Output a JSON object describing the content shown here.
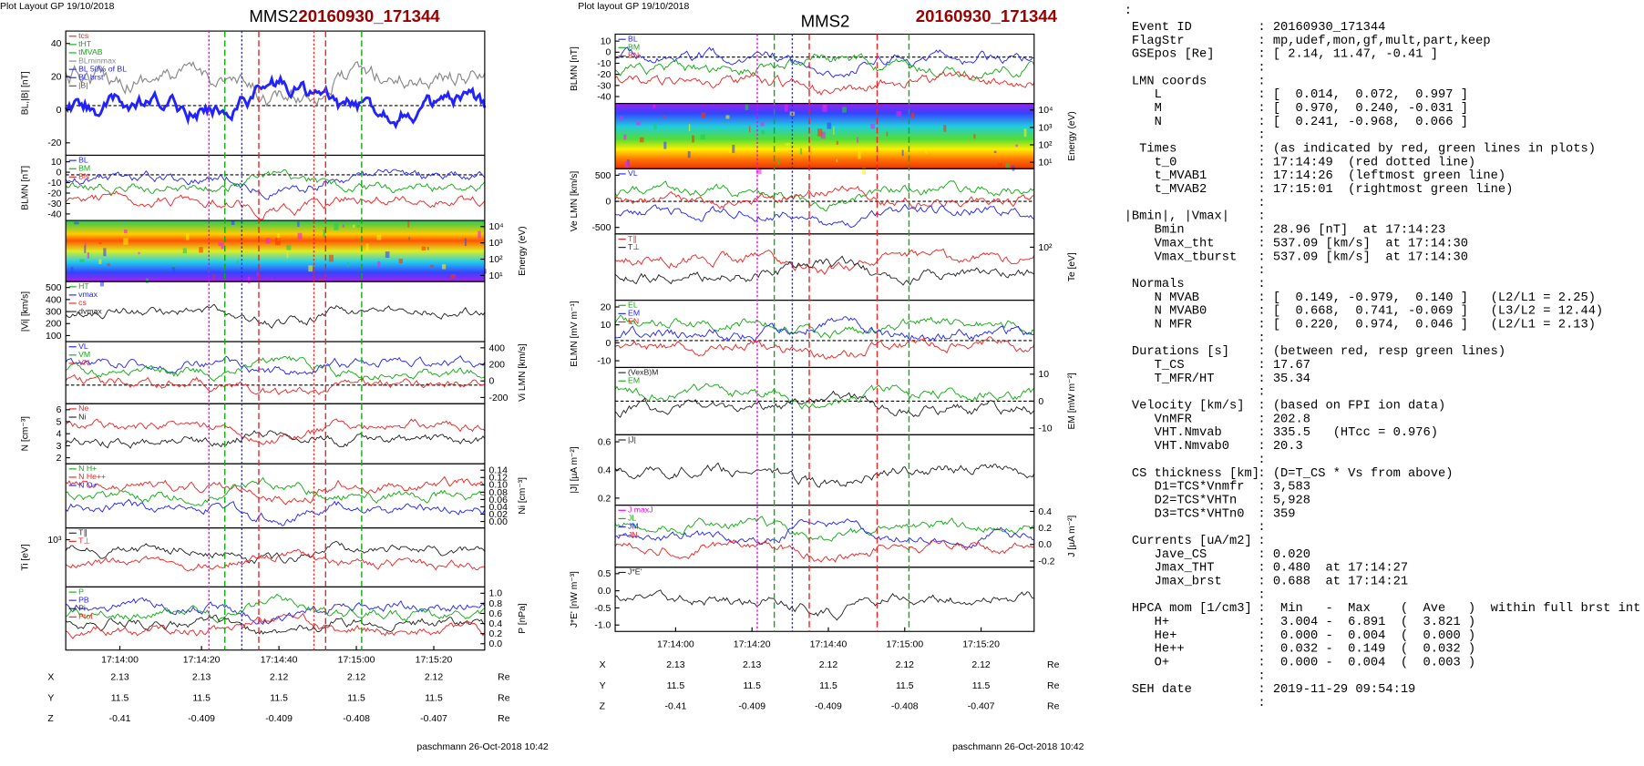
{
  "left_plot": {
    "header": "Plot Layout GP 19/10/2018",
    "mission": "MMS2",
    "event": "20160930_171344",
    "panels": [
      {
        "ylabel": "BL,|B| [nT]",
        "ticks": [
          "40",
          "20",
          "0",
          "-20"
        ],
        "legend": [
          "tcs",
          "tHT",
          "tMVAB",
          "BLminmax",
          "BL 50% of BL",
          "BL brst",
          "|B|"
        ]
      },
      {
        "ylabel": "BLMN [nT]",
        "ticks": [
          "10",
          "0",
          "-10",
          "-20",
          "-30",
          "-40"
        ],
        "legend": [
          "BL",
          "BM",
          "BN"
        ]
      },
      {
        "ylabel": "Energy (eV)",
        "ticks": [
          "10⁴",
          "10³",
          "10²",
          "10¹"
        ]
      },
      {
        "ylabel": "|Vi| [km/s]",
        "ticks": [
          "500",
          "400",
          "300",
          "200",
          "100"
        ],
        "legend": [
          "HT",
          "vmax",
          "cs",
          "dvmax"
        ]
      },
      {
        "ylabel": "Vi LMN [km/s]",
        "ticks": [
          "400",
          "200",
          "0",
          "-200"
        ],
        "legend": [
          "VL",
          "VM",
          "VN"
        ]
      },
      {
        "ylabel": "N [cm⁻³]",
        "ticks": [
          "6",
          "5",
          "4",
          "3",
          "2"
        ],
        "legend": [
          "Ne",
          "Ni"
        ]
      },
      {
        "ylabel": "Ni [cm⁻³]",
        "ticks": [
          "0.14",
          "0.12",
          "0.10",
          "0.08",
          "0.06",
          "0.04",
          "0.02",
          "0.00"
        ],
        "legend": [
          "N H+",
          "N He++",
          "N O+"
        ]
      },
      {
        "ylabel": "Ti [eV]",
        "ticks": [
          "10³"
        ],
        "legend": [
          "T∥",
          "T⊥"
        ]
      },
      {
        "ylabel": "P [nPa]",
        "ticks": [
          "1.0",
          "0.8",
          "0.6",
          "0.4",
          "0.2",
          "0.0"
        ],
        "legend": [
          "P",
          "PB",
          "Pi",
          "Ptot"
        ]
      }
    ],
    "xticks": [
      "17:14:00",
      "17:14:20",
      "17:14:40",
      "17:15:00",
      "17:15:20"
    ],
    "positions": [
      {
        "label": "X",
        "values": [
          "2.13",
          "2.13",
          "2.12",
          "2.12",
          "2.12"
        ],
        "unit": "Re"
      },
      {
        "label": "Y",
        "values": [
          "11.5",
          "11.5",
          "11.5",
          "11.5",
          "11.5"
        ],
        "unit": "Re"
      },
      {
        "label": "Z",
        "values": [
          "-0.41",
          "-0.409",
          "-0.409",
          "-0.408",
          "-0.407"
        ],
        "unit": "Re"
      }
    ],
    "footer": "paschmann 26-Oct-2018 10:42"
  },
  "right_plot": {
    "header": "Plot layout GP 19/10/2018",
    "mission": "MMS2",
    "event": "20160930_171344",
    "panels": [
      {
        "ylabel": "BLMN [nT]",
        "ticks": [
          "10",
          "0",
          "-10",
          "-20",
          "-30",
          "-40"
        ],
        "legend": [
          "BL",
          "BM",
          "BN"
        ]
      },
      {
        "ylabel": "Energy (eV)",
        "ticks": [
          "10⁴",
          "10³",
          "10²",
          "10¹"
        ]
      },
      {
        "ylabel": "Ve LMN [km/s]",
        "ticks": [
          "500",
          "0",
          "-500"
        ],
        "legend": [
          "VL"
        ]
      },
      {
        "ylabel": "Te [eV]",
        "ticks": [
          "10²"
        ],
        "legend": [
          "T∥",
          "T⊥"
        ]
      },
      {
        "ylabel": "ELMN [mV m⁻¹]",
        "ticks": [
          "20",
          "10",
          "0",
          "-10"
        ],
        "legend": [
          "EL",
          "EM",
          "EN"
        ]
      },
      {
        "ylabel": "EM [mW m⁻²]",
        "ticks": [
          "10",
          "0",
          "-10"
        ],
        "legend": [
          "(VexB)M",
          "EM"
        ]
      },
      {
        "ylabel": "|J| [µA m⁻²]",
        "ticks": [
          "0.6",
          "0.4",
          "0.2"
        ],
        "legend": [
          "|J|"
        ]
      },
      {
        "ylabel": "J [µA m⁻²]",
        "ticks": [
          "0.4",
          "0.2",
          "0.0",
          "-0.2"
        ],
        "legend": [
          "J maxJ",
          "JL",
          "JM",
          "JN"
        ]
      },
      {
        "ylabel": "J*E' [nW m⁻³]",
        "ticks": [
          "0.5",
          "0.0",
          "-0.5",
          "-1.0"
        ],
        "legend": [
          "J*E'"
        ]
      }
    ],
    "xticks": [
      "17:14:00",
      "17:14:20",
      "17:14:40",
      "17:15:00",
      "17:15:20"
    ],
    "positions": [
      {
        "label": "X",
        "values": [
          "2.13",
          "2.13",
          "2.12",
          "2.12",
          "2.12"
        ],
        "unit": "Re"
      },
      {
        "label": "Y",
        "values": [
          "11.5",
          "11.5",
          "11.5",
          "11.5",
          "11.5"
        ],
        "unit": "Re"
      },
      {
        "label": "Z",
        "values": [
          "-0.41",
          "-0.409",
          "-0.409",
          "-0.408",
          "-0.407"
        ],
        "unit": "Re"
      }
    ],
    "footer": "paschmann 26-Oct-2018 10:42"
  },
  "summary": {
    "lead": ":",
    "lines": [
      {
        "key": " Event ID",
        "value": ": 20160930_171344"
      },
      {
        "key": " FlagStr",
        "value": ": mp,udef,mon,gf,mult,part,keep"
      },
      {
        "key": " GSEpos [Re]",
        "value": ": [ 2.14, 11.47, -0.41 ]"
      },
      {
        "value": ":"
      },
      {
        "key": " LMN coords",
        "value": ":"
      },
      {
        "key": "    L",
        "value": ": [  0.014,  0.072,  0.997 ]"
      },
      {
        "key": "    M",
        "value": ": [  0.970,  0.240, -0.031 ]"
      },
      {
        "key": "    N",
        "value": ": [  0.241, -0.968,  0.066 ]"
      },
      {
        "value": ":"
      },
      {
        "key": "  Times",
        "value": ": (as indicated by red, green lines in plots)"
      },
      {
        "key": "    t_0",
        "value": ": 17:14:49  (red dotted line)"
      },
      {
        "key": "    t_MVAB1",
        "value": ": 17:14:26  (leftmost green line)"
      },
      {
        "key": "    t_MVAB2",
        "value": ": 17:15:01  (rightmost green line)"
      },
      {
        "value": ":"
      },
      {
        "key": "|Bmin|, |Vmax|",
        "value": ":"
      },
      {
        "key": "    Bmin",
        "value": ": 28.96 [nT]  at 17:14:23"
      },
      {
        "key": "    Vmax_tht",
        "value": ": 537.09 [km/s]  at 17:14:30"
      },
      {
        "key": "    Vmax_tburst",
        "value": ": 537.09 [km/s]  at 17:14:30"
      },
      {
        "value": ":"
      },
      {
        "key": " Normals",
        "value": ":"
      },
      {
        "key": "    N MVAB",
        "value": ": [  0.149, -0.979,  0.140 ]   (L2/L1 = 2.25)"
      },
      {
        "key": "    N MVAB0",
        "value": ": [  0.668,  0.741, -0.069 ]   (L3/L2 = 12.44)"
      },
      {
        "key": "    N MFR",
        "value": ": [  0.220,  0.974,  0.046 ]   (L2/L1 = 2.13)"
      },
      {
        "value": ":"
      },
      {
        "key": " Durations [s]",
        "value": ": (between red, resp green lines)"
      },
      {
        "key": "    T_CS",
        "value": ": 17.67"
      },
      {
        "key": "    T_MFR/HT",
        "value": ": 35.34"
      },
      {
        "value": ":"
      },
      {
        "key": " Velocity [km/s]",
        "value": ": (based on FPI ion data)"
      },
      {
        "key": "    VnMFR",
        "value": ": 202.8"
      },
      {
        "key": "    VHT.Nmvab",
        "value": ": 335.5   (HTcc = 0.976)"
      },
      {
        "key": "    VHT.Nmvab0",
        "value": ": 20.3"
      },
      {
        "value": ":"
      },
      {
        "key": " CS thickness [km]",
        "value": ": (D=T_CS * Vs from above)"
      },
      {
        "key": "    D1=TCS*Vnmfr",
        "value": ": 3,583"
      },
      {
        "key": "    D2=TCS*VHTn",
        "value": ": 5,928"
      },
      {
        "key": "    D3=TCS*VHTn0",
        "value": ": 359"
      },
      {
        "value": ":"
      },
      {
        "key": " Currents [uA/m2]",
        "value": ":"
      },
      {
        "key": "    Jave_CS",
        "value": ": 0.020"
      },
      {
        "key": "    Jmax_THT",
        "value": ": 0.480  at 17:14:27"
      },
      {
        "key": "    Jmax_brst",
        "value": ": 0.688  at 17:14:21"
      },
      {
        "value": ":"
      },
      {
        "key": " HPCA mom [1/cm3]",
        "value": ":  Min   -  Max    (  Ave   )  within full brst int"
      },
      {
        "key": "    H+",
        "value": ":  3.004 -  6.891  (  3.821 )"
      },
      {
        "key": "    He+",
        "value": ":  0.000 -  0.004  (  0.000 )"
      },
      {
        "key": "    He++",
        "value": ":  0.032 -  0.149  (  0.032 )"
      },
      {
        "key": "    O+",
        "value": ":  0.000 -  0.004  (  0.003 )"
      },
      {
        "value": ":"
      },
      {
        "key": " SEH date",
        "value": ": 2019-11-29 09:54:19"
      },
      {
        "value": ":"
      }
    ]
  }
}
